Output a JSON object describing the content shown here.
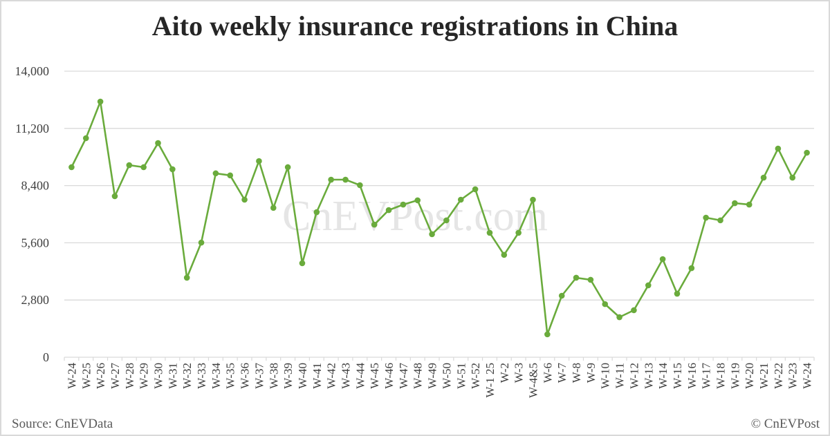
{
  "header": {
    "title": "Aito weekly insurance registrations in China"
  },
  "footer": {
    "source": "Source: CnEVData",
    "copyright": "© CnEVPost"
  },
  "watermark": "CnEVPost.com",
  "colors": {
    "line": "#6aab3c",
    "marker": "#6aab3c",
    "grid": "#d9d9d9",
    "axis_text": "#404040",
    "title": "#262626"
  },
  "chart_data": {
    "type": "line",
    "title": "Aito weekly insurance registrations in China",
    "xlabel": "",
    "ylabel": "",
    "ylim": [
      0,
      14000
    ],
    "yticks": [
      0,
      2800,
      5600,
      8400,
      11200,
      14000
    ],
    "ytick_labels": [
      "0",
      "2,800",
      "5,600",
      "8,400",
      "11,200",
      "14,000"
    ],
    "grid": true,
    "legend": null,
    "categories": [
      "W-24",
      "W-25",
      "W-26",
      "W-27",
      "W-28",
      "W-29",
      "W-30",
      "W-31",
      "W-32",
      "W-33",
      "W-34",
      "W-35",
      "W-36",
      "W-37",
      "W-38",
      "W-39",
      "W-40",
      "W-41",
      "W-42",
      "W-43",
      "W-44",
      "W-45",
      "W-46",
      "W-47",
      "W-48",
      "W-49",
      "W-50",
      "W-51",
      "W-52",
      "W-1 25",
      "W-2",
      "W-3",
      "W-4&5",
      "W-6",
      "W-7",
      "W-8",
      "W-9",
      "W-10",
      "W-11",
      "W-12",
      "W-13",
      "W-14",
      "W-15",
      "W-16",
      "W-17",
      "W-18",
      "W-19",
      "W-20",
      "W-21",
      "W-22",
      "W-23",
      "W-24"
    ],
    "series": [
      {
        "name": "Aito weekly insurance registrations",
        "values": [
          9300,
          10720,
          12510,
          7880,
          9400,
          9300,
          10480,
          9200,
          3890,
          5610,
          9000,
          8900,
          7710,
          9600,
          7310,
          9300,
          4600,
          7100,
          8690,
          8690,
          8420,
          6490,
          7200,
          7470,
          7680,
          6020,
          6700,
          7710,
          8220,
          6090,
          5010,
          6090,
          7710,
          1120,
          3010,
          3890,
          3790,
          2600,
          1960,
          2300,
          3520,
          4800,
          3110,
          4360,
          6830,
          6700,
          7540,
          7470,
          8790,
          10210,
          8790,
          10010
        ]
      }
    ],
    "source": "Source: CnEVData",
    "copyright": "© CnEVPost"
  }
}
